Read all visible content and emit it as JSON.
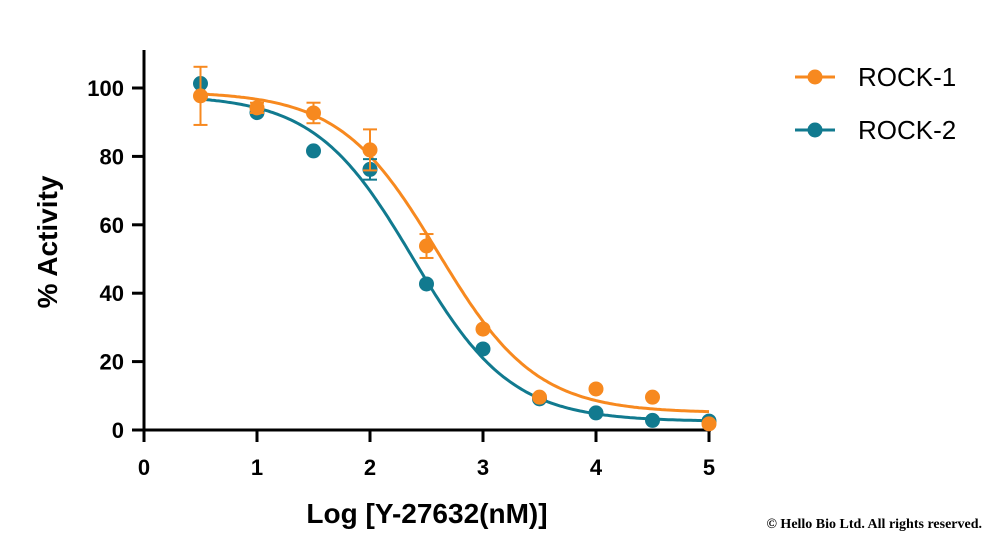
{
  "chart_data": {
    "type": "scatter",
    "xlabel": "Log [Y-27632(nM)]",
    "ylabel": "% Activity",
    "xlim": [
      0,
      5
    ],
    "ylim": [
      0,
      110
    ],
    "xticks": [
      "0",
      "1",
      "2",
      "3",
      "4",
      "5"
    ],
    "yticks": [
      "0",
      "20",
      "40",
      "60",
      "80",
      "100"
    ],
    "grid": false,
    "legend_position": "top-right",
    "series": [
      {
        "name": "ROCK-1",
        "color": "#F7891F",
        "x": [
          0.5,
          1.0,
          1.5,
          2.0,
          2.5,
          3.0,
          3.5,
          4.0,
          4.5,
          5.0
        ],
        "y": [
          97.7,
          94.2,
          92.7,
          81.9,
          53.8,
          29.5,
          9.6,
          12.0,
          9.6,
          1.8
        ],
        "err": [
          8.5,
          1.5,
          3.0,
          6.0,
          3.5,
          0,
          0,
          0,
          0,
          0
        ],
        "fit": {
          "model": "4PL",
          "top": 99,
          "bottom": 5,
          "logIC50": 2.6,
          "hill": 1.0
        }
      },
      {
        "name": "ROCK-2",
        "color": "#117A8F",
        "x": [
          0.5,
          1.0,
          1.5,
          2.0,
          2.5,
          3.0,
          3.5,
          4.0,
          4.5,
          5.0
        ],
        "y": [
          101.3,
          92.8,
          81.6,
          76.2,
          42.7,
          23.7,
          9.1,
          5.0,
          2.8,
          2.6
        ],
        "err": [
          0,
          0,
          0,
          3.0,
          0,
          0,
          0,
          0,
          0,
          0
        ],
        "fit": {
          "model": "4PL",
          "top": 98,
          "bottom": 2.5,
          "logIC50": 2.38,
          "hill": 1.0
        }
      }
    ]
  },
  "copyright": "© Hello Bio Ltd. All rights reserved."
}
